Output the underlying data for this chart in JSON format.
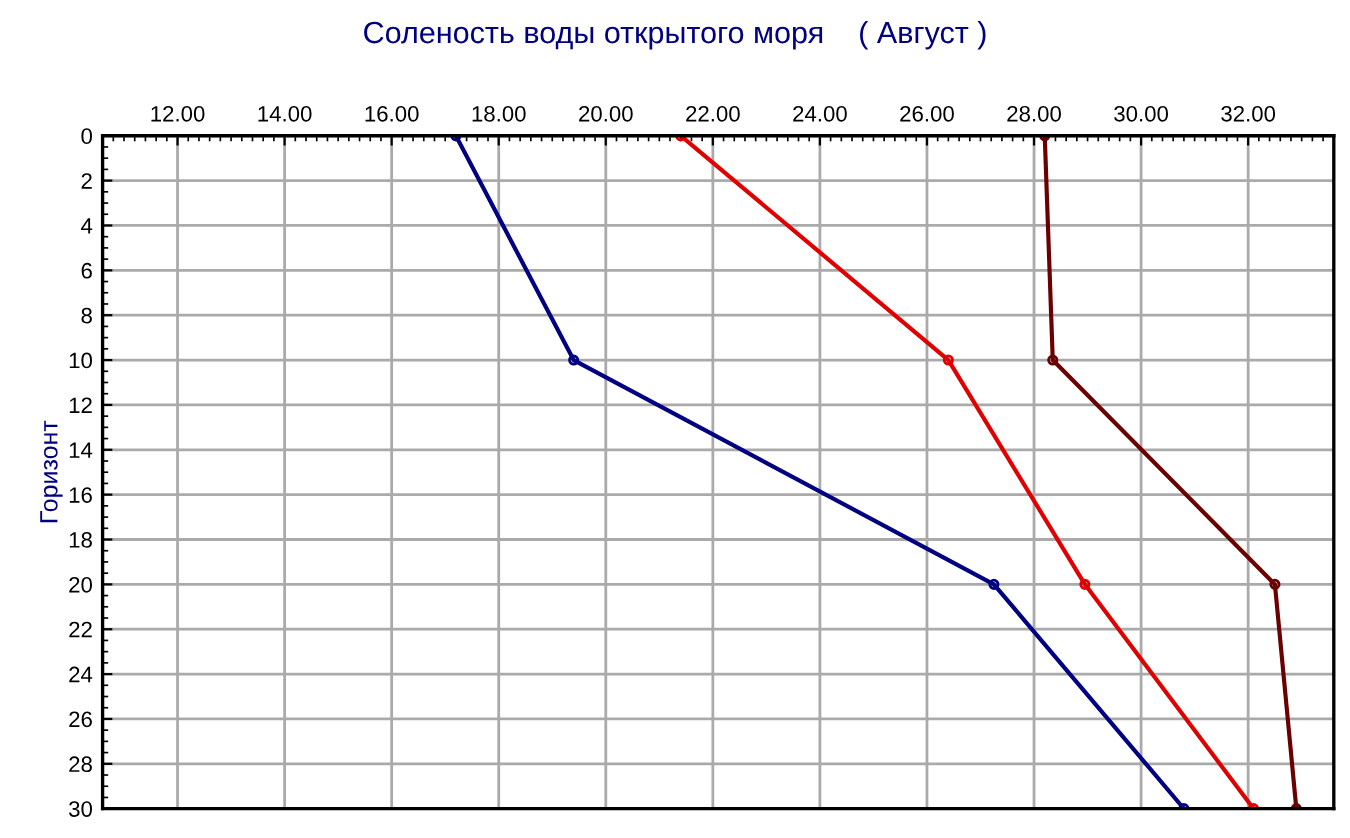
{
  "chart_data": {
    "type": "line",
    "title": "Соленость воды открытого моря    ( Август )",
    "ylabel": "Горизонт",
    "series": [
      {
        "color": "#000080",
        "x": [
          17.2,
          19.4,
          27.25,
          30.8
        ],
        "values": [
          0,
          10,
          20,
          30
        ]
      },
      {
        "color": "#e00000",
        "x": [
          21.4,
          26.4,
          28.95,
          32.1
        ],
        "values": [
          0,
          10,
          20,
          30
        ]
      },
      {
        "color": "#6b0000",
        "x": [
          28.2,
          28.35,
          32.5,
          32.9
        ],
        "values": [
          0,
          10,
          20,
          30
        ]
      }
    ],
    "xlim": [
      10.6,
      33.6
    ],
    "xticks": [
      {
        "value": 12,
        "label": "12.00"
      },
      {
        "value": 14,
        "label": "14.00"
      },
      {
        "value": 16,
        "label": "16.00"
      },
      {
        "value": 18,
        "label": "18.00"
      },
      {
        "value": 20,
        "label": "20.00"
      },
      {
        "value": 22,
        "label": "22.00"
      },
      {
        "value": 24,
        "label": "24.00"
      },
      {
        "value": 26,
        "label": "26.00"
      },
      {
        "value": 28,
        "label": "28.00"
      },
      {
        "value": 30,
        "label": "30.00"
      },
      {
        "value": 32,
        "label": "32.00"
      }
    ],
    "ylim": [
      30,
      0
    ],
    "yticks": [
      0,
      2,
      4,
      6,
      8,
      10,
      12,
      14,
      16,
      18,
      20,
      22,
      24,
      26,
      28,
      30
    ],
    "grid": true,
    "marker": "circle",
    "line_style": "solid",
    "legend": false
  }
}
